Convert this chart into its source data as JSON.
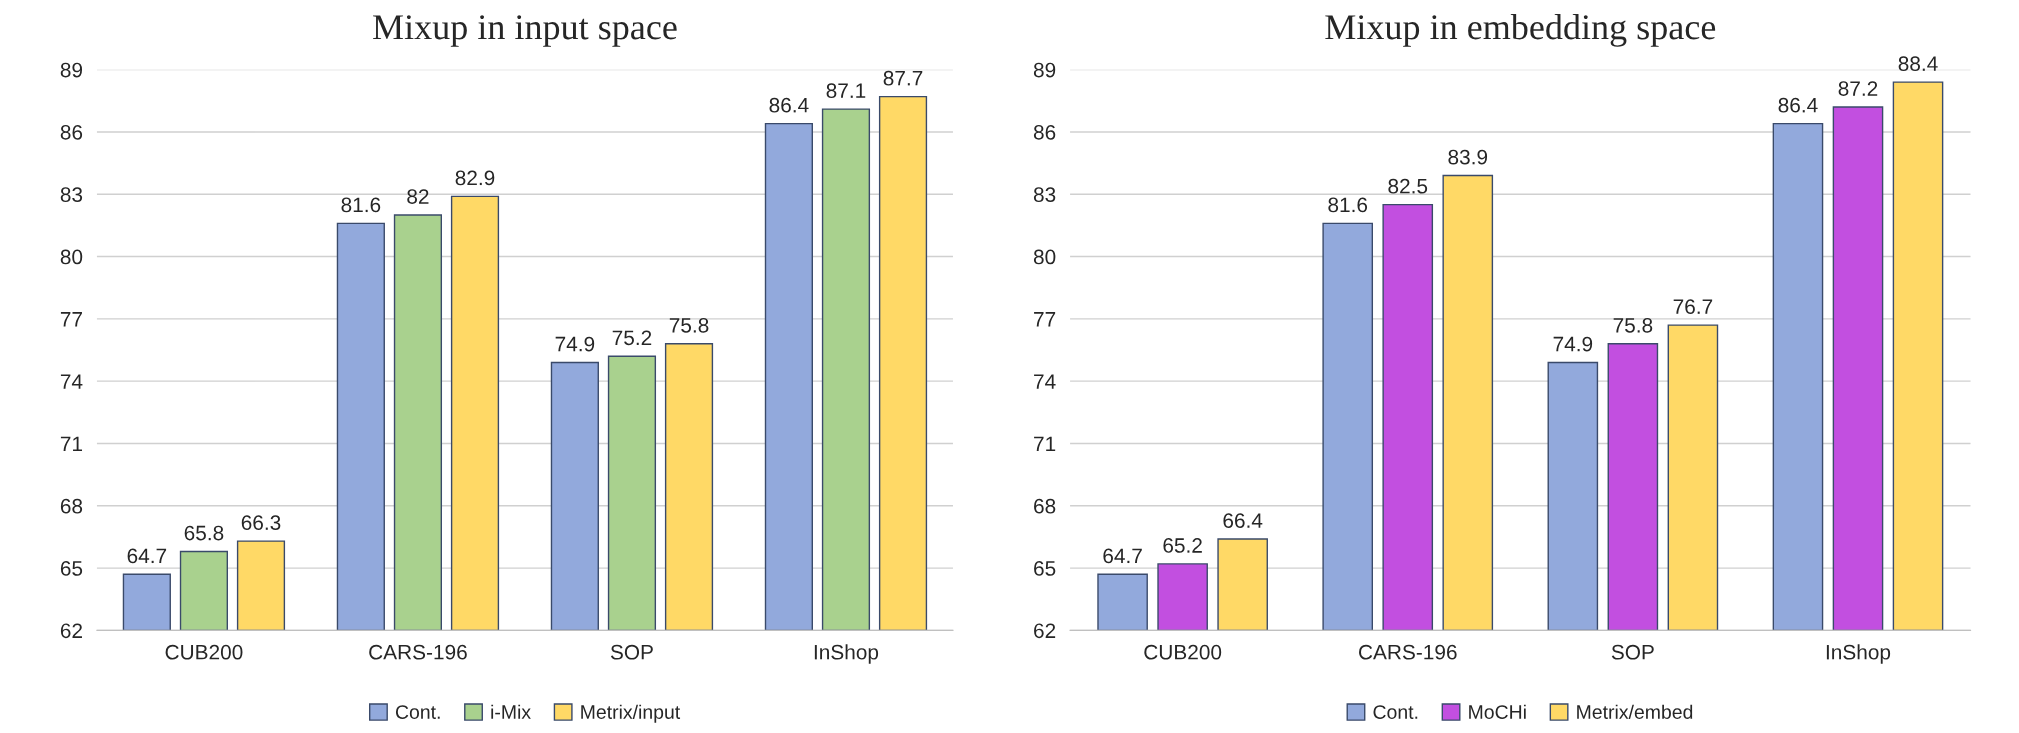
{
  "chart_data": [
    {
      "type": "bar",
      "title": "Mixup in input space",
      "categories": [
        "CUB200",
        "CARS-196",
        "SOP",
        "InShop"
      ],
      "series": [
        {
          "name": "Cont.",
          "color": "#92a9dc",
          "values": [
            64.7,
            81.6,
            74.9,
            86.4
          ]
        },
        {
          "name": "i-Mix",
          "color": "#a9d18e",
          "values": [
            65.8,
            82,
            75.2,
            87.1
          ]
        },
        {
          "name": "Metrix/input",
          "color": "#ffd966",
          "values": [
            66.3,
            82.9,
            75.8,
            87.7
          ]
        }
      ],
      "ylim": [
        62,
        89
      ],
      "yticks": [
        62,
        65,
        68,
        71,
        74,
        77,
        80,
        83,
        86,
        89
      ],
      "grid": "y",
      "legend": "bottom",
      "data_labels": true
    },
    {
      "type": "bar",
      "title": "Mixup in embedding space",
      "categories": [
        "CUB200",
        "CARS-196",
        "SOP",
        "InShop"
      ],
      "series": [
        {
          "name": "Cont.",
          "color": "#92a9dc",
          "values": [
            64.7,
            81.6,
            74.9,
            86.4
          ]
        },
        {
          "name": "MoCHi",
          "color": "#c24fe0",
          "values": [
            65.2,
            82.5,
            75.8,
            87.2
          ]
        },
        {
          "name": "Metrix/embed",
          "color": "#ffd966",
          "values": [
            66.4,
            83.9,
            76.7,
            88.4
          ]
        }
      ],
      "ylim": [
        62,
        89
      ],
      "yticks": [
        62,
        65,
        68,
        71,
        74,
        77,
        80,
        83,
        86,
        89
      ],
      "grid": "y",
      "legend": "bottom",
      "data_labels": true
    }
  ]
}
